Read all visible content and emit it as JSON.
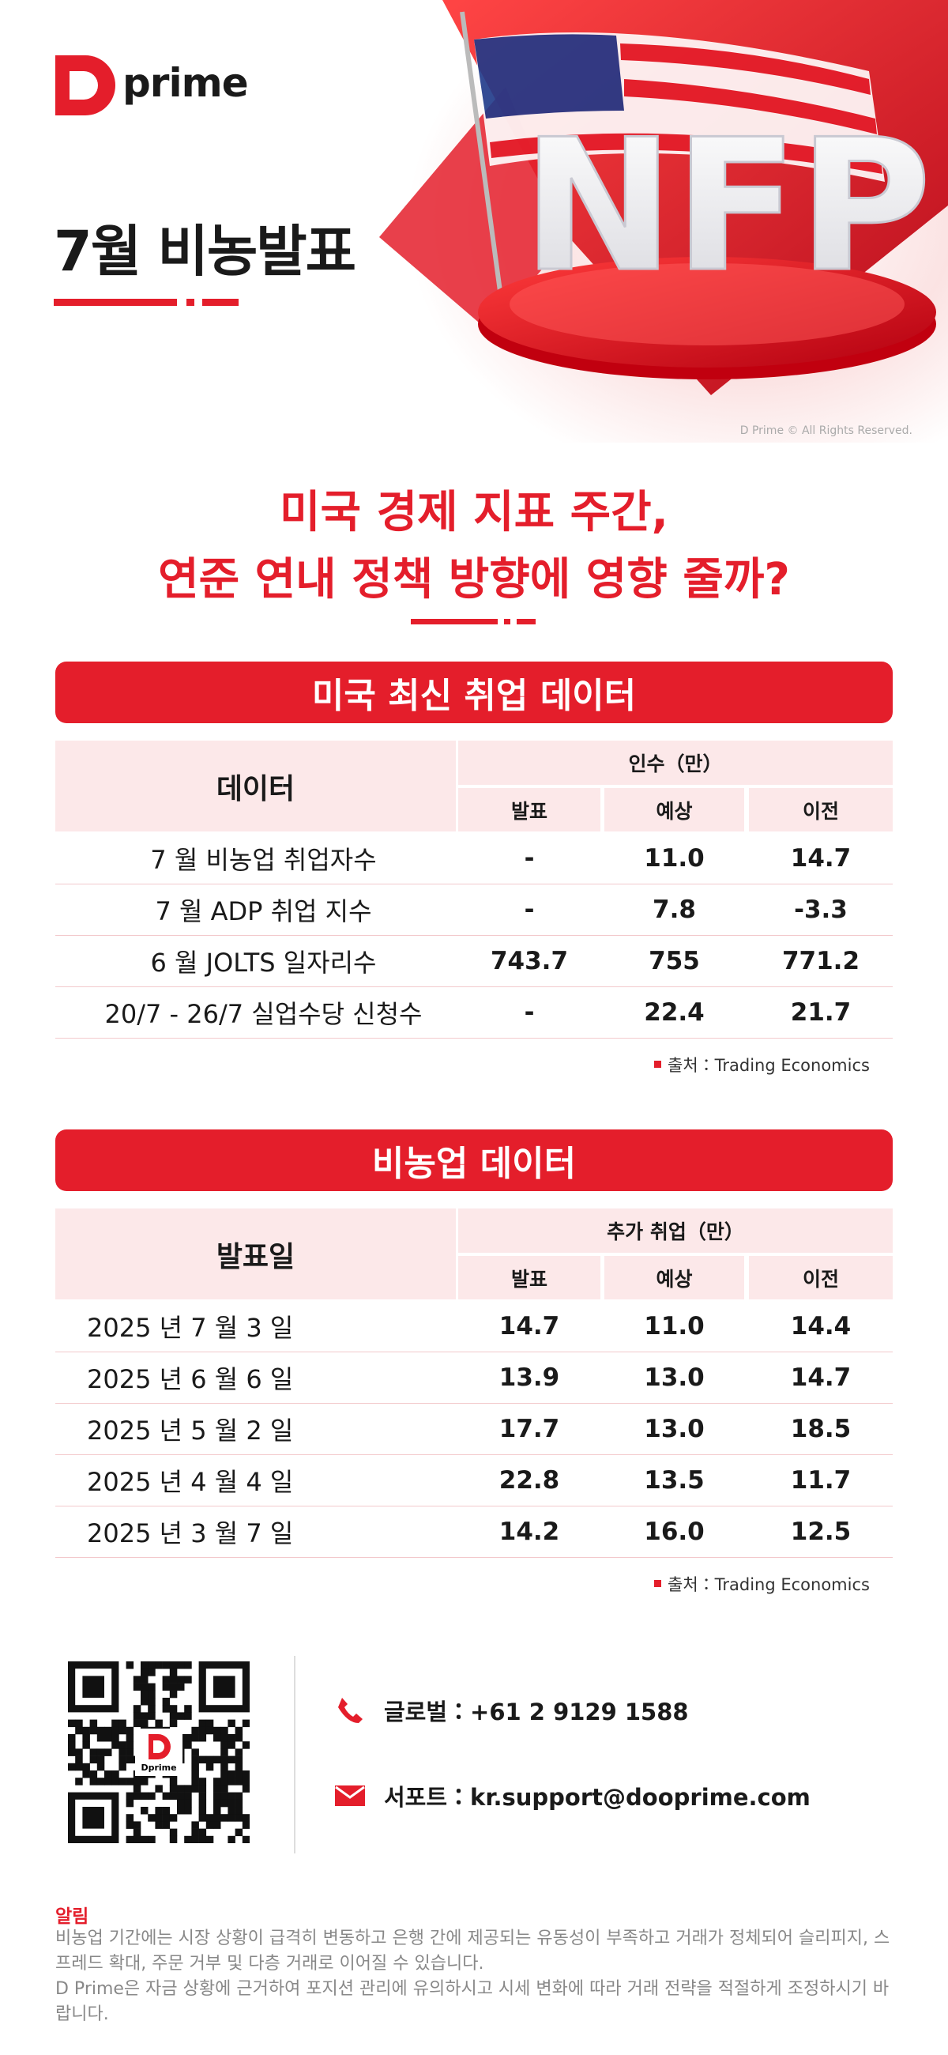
{
  "header": {
    "logo": "prime",
    "title": "7월 비농발표",
    "hero_text": "NFP",
    "copyright": "D Prime © All Rights Reserved."
  },
  "headline": {
    "line1": "미국 경제 지표 주간,",
    "line2": "연준 연내 정책 방향에 영향 줄까?"
  },
  "tables": [
    {
      "title": "미국 최신 취업 데이터",
      "first_column": "데이터",
      "group_header": "인수（만）",
      "columns": [
        "발표",
        "예상",
        "이전"
      ],
      "rows": [
        [
          "7 월 비농업 취업자수",
          "-",
          "11.0",
          "14.7"
        ],
        [
          "7 월 ADP 취업 지수",
          "-",
          "7.8",
          "-3.3"
        ],
        [
          "6 월 JOLTS 일자리수",
          "743.7",
          "755",
          "771.2"
        ],
        [
          "20/7 - 26/7 실업수당 신청수",
          "-",
          "22.4",
          "21.7"
        ]
      ],
      "source": "출처：Trading Economics"
    },
    {
      "title": "비농업 데이터",
      "first_column": "발표일",
      "group_header": "추가 취업（만）",
      "columns": [
        "발표",
        "예상",
        "이전"
      ],
      "rows": [
        [
          "2025 년 7 월 3 일",
          "14.7",
          "11.0",
          "14.4"
        ],
        [
          "2025 년 6 월 6 일",
          "13.9",
          "13.0",
          "14.7"
        ],
        [
          "2025 년 5 월 2 일",
          "17.7",
          "13.0",
          "18.5"
        ],
        [
          "2025 년 4 월 4 일",
          "22.8",
          "13.5",
          "11.7"
        ],
        [
          "2025 년 3 월 7 일",
          "14.2",
          "16.0",
          "12.5"
        ]
      ],
      "source": "출처：Trading Economics"
    }
  ],
  "contact": {
    "qr_text": "Dprime",
    "phone": "글로벌：+61 2 9129 1588",
    "email": "서포트：kr.support@dooprime.com"
  },
  "notice": {
    "title": "알림",
    "paragraphs": [
      "비농업 기간에는 시장 상황이 급격히 변동하고 은행 간에 제공되는 유동성이 부족하고 거래가 정체되어 슬리피지, 스프레드 확대, 주문 거부 및 다층 거래로 이어질 수 있습니다.",
      "D Prime은 자금 상황에 근거하여 포지션 관리에 유의하시고 시세 변화에 따라 거래 전략을 적절하게 조정하시기 바랍니다."
    ]
  }
}
